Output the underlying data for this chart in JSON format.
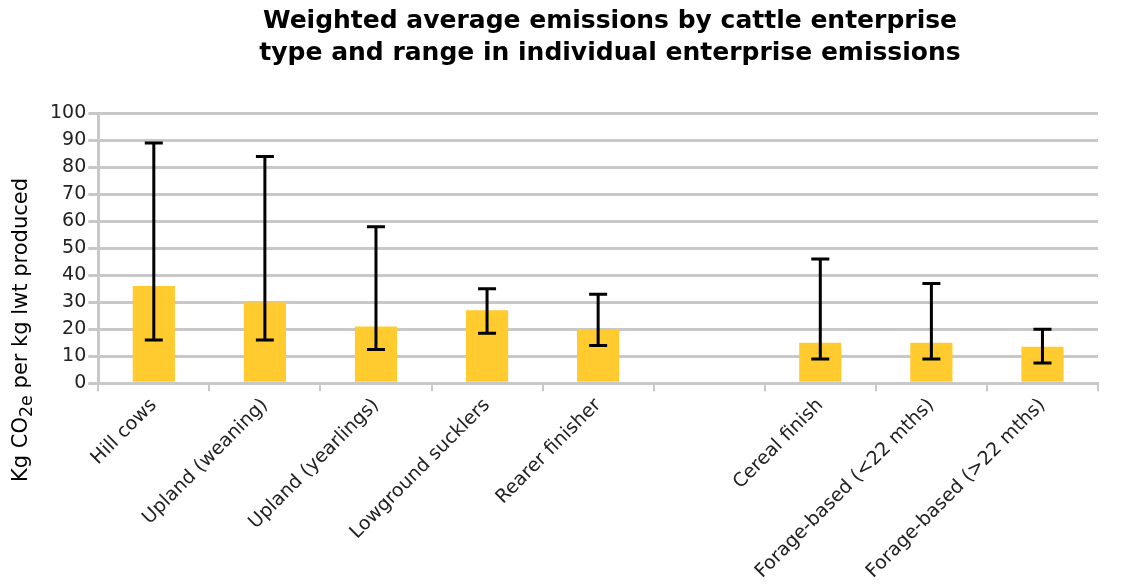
{
  "chart_data": {
    "type": "bar",
    "title": "Weighted average emissions by cattle enterprise type and range in individual enterprise emissions",
    "ylabel": "Kg CO$_{2e}$ per kg lwt produced",
    "categories": [
      "Hill cows",
      "Upland (weaning)",
      "Upland (yearlings)",
      "Lowground sucklers",
      "Rearer finisher",
      null,
      "Cereal finish",
      "Forage-based (<22 mths)",
      "Forage-based (>22 mths)"
    ],
    "values": [
      36,
      30,
      21,
      27,
      20,
      null,
      15,
      15,
      13.5
    ],
    "errors": [
      [
        16,
        89
      ],
      [
        16,
        84
      ],
      [
        12.5,
        58
      ],
      [
        18.5,
        35
      ],
      [
        14,
        33
      ],
      null,
      [
        9,
        46
      ],
      [
        9,
        37
      ],
      [
        7.5,
        20
      ]
    ],
    "color": "#ffcb2f",
    "ylim": [
      0,
      100
    ],
    "yticks": [
      0,
      10,
      20,
      30,
      40,
      50,
      60,
      70,
      80,
      90,
      100
    ],
    "grid": "y"
  }
}
